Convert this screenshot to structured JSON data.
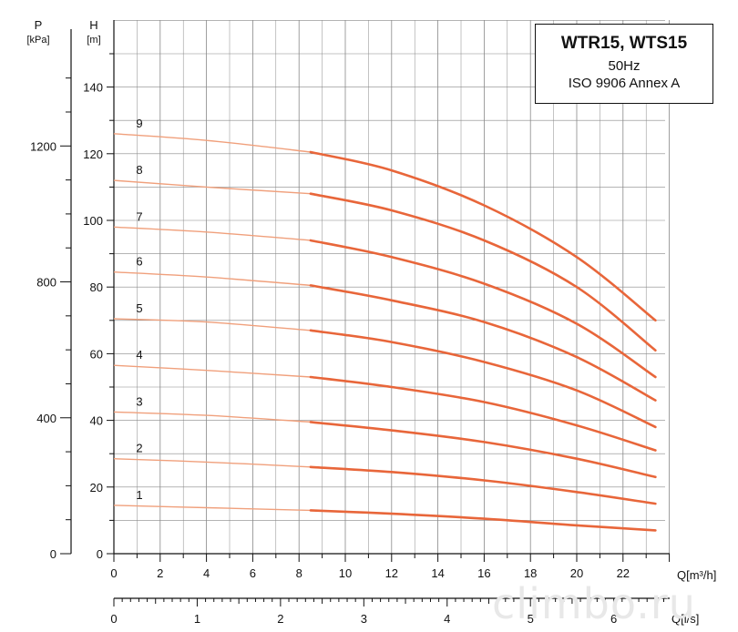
{
  "chart_data": {
    "type": "line",
    "title": "WTR15, WTS15",
    "subtitle_freq": "50Hz",
    "subtitle_std": "ISO 9906  Annex A",
    "axes": {
      "pressure": {
        "label": "P",
        "unit": "[kPa]",
        "ticks": [
          "0",
          "400",
          "800",
          "1200"
        ],
        "range": [
          0,
          1400
        ]
      },
      "head": {
        "label": "H",
        "unit": "[m]",
        "ticks": [
          "0",
          "20",
          "40",
          "60",
          "80",
          "100",
          "120",
          "140"
        ],
        "range": [
          0,
          150
        ]
      },
      "flow_m3h": {
        "label": "Q[m³/h]",
        "ticks": [
          "0",
          "2",
          "4",
          "6",
          "8",
          "10",
          "12",
          "14",
          "16",
          "18",
          "20",
          "22"
        ],
        "range": [
          0,
          24
        ]
      },
      "flow_ls": {
        "label": "Q[l/s]",
        "ticks": [
          "0",
          "1",
          "2",
          "3",
          "4",
          "5",
          "6"
        ],
        "range": [
          0,
          6.67
        ]
      }
    },
    "grid": true,
    "operating_range_m3h": [
      8.5,
      23.4
    ],
    "series": [
      {
        "name": "1",
        "x": [
          0,
          4,
          8.5,
          12,
          16,
          20,
          23.4
        ],
        "y": [
          14.5,
          13.8,
          13.0,
          12.0,
          10.5,
          8.5,
          7.0
        ]
      },
      {
        "name": "2",
        "x": [
          0,
          4,
          8.5,
          12,
          16,
          20,
          23.4
        ],
        "y": [
          28.5,
          27.5,
          26.0,
          24.5,
          22.0,
          18.5,
          15.0
        ]
      },
      {
        "name": "3",
        "x": [
          0,
          4,
          8.5,
          12,
          16,
          20,
          23.4
        ],
        "y": [
          42.5,
          41.5,
          39.5,
          37.0,
          33.5,
          28.5,
          23.0
        ]
      },
      {
        "name": "4",
        "x": [
          0,
          4,
          8.5,
          12,
          16,
          20,
          23.4
        ],
        "y": [
          56.5,
          55.0,
          53.0,
          50.0,
          45.5,
          38.5,
          31.0
        ]
      },
      {
        "name": "5",
        "x": [
          0,
          4,
          8.5,
          12,
          16,
          20,
          23.4
        ],
        "y": [
          70.5,
          69.5,
          67.0,
          63.5,
          57.5,
          49.0,
          38.0
        ]
      },
      {
        "name": "6",
        "x": [
          0,
          4,
          8.5,
          12,
          16,
          20,
          23.4
        ],
        "y": [
          84.5,
          83.0,
          80.5,
          76.0,
          69.5,
          59.0,
          46.0
        ]
      },
      {
        "name": "7",
        "x": [
          0,
          4,
          8.5,
          12,
          16,
          20,
          23.4
        ],
        "y": [
          98.0,
          96.5,
          94.0,
          89.0,
          81.0,
          69.0,
          53.0
        ]
      },
      {
        "name": "8",
        "x": [
          0,
          4,
          8.5,
          12,
          16,
          20,
          23.4
        ],
        "y": [
          112.0,
          110.0,
          108.0,
          103.0,
          94.0,
          80.0,
          61.0
        ]
      },
      {
        "name": "9",
        "x": [
          0,
          4,
          8.5,
          12,
          16,
          20,
          23.4
        ],
        "y": [
          126.0,
          124.0,
          120.5,
          115.0,
          104.5,
          89.0,
          70.0
        ]
      }
    ],
    "colors": {
      "curve": "#e8663a",
      "curve_light": "#f0a07c",
      "grid": "#888888",
      "axis": "#111111"
    }
  },
  "watermark": "climbo.ru"
}
